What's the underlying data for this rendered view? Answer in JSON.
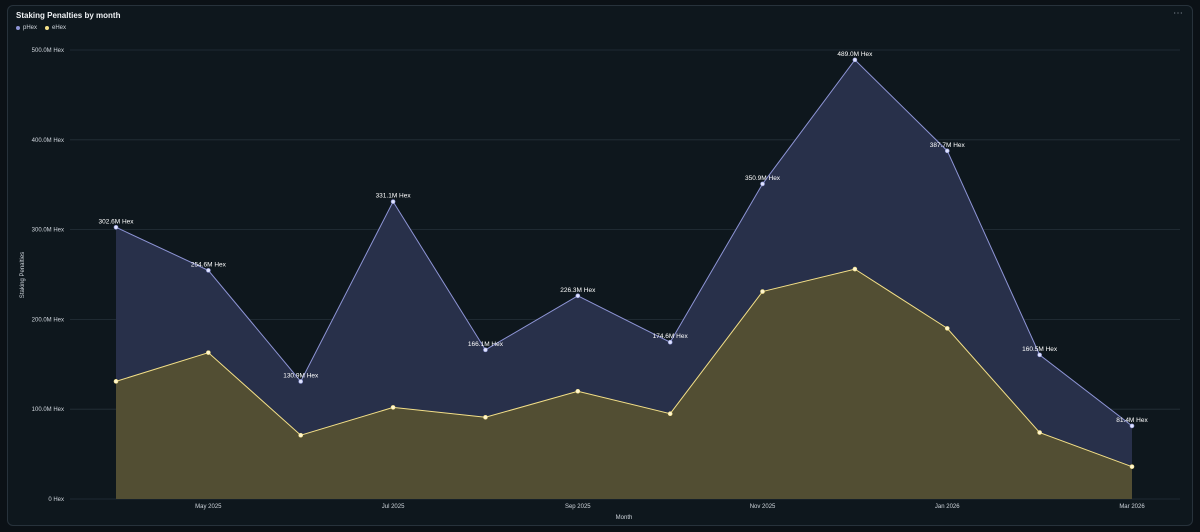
{
  "header": {
    "title": "Staking Penalties by month",
    "menu_icon": "more-icon"
  },
  "colors": {
    "pHex": "#8e95d6",
    "eHex": "#f4e088"
  },
  "chart_data": {
    "type": "area",
    "title": "Staking Penalties by month",
    "xlabel": "Month",
    "ylabel": "Staking Penalties",
    "ylim": [
      0,
      500
    ],
    "unit": "M Hex",
    "grid": true,
    "legend": "top-left",
    "x": [
      "Apr 2025",
      "May 2025",
      "Jun 2025",
      "Jul 2025",
      "Aug 2025",
      "Sep 2025",
      "Oct 2025",
      "Nov 2025",
      "Dec 2025",
      "Jan 2026",
      "Feb 2026",
      "Mar 2026"
    ],
    "x_tick_labels": [
      {
        "x": "May 2025",
        "label": "May 2025"
      },
      {
        "x": "Jul 2025",
        "label": "Jul 2025"
      },
      {
        "x": "Sep 2025",
        "label": "Sep 2025"
      },
      {
        "x": "Nov 2025",
        "label": "Nov 2025"
      },
      {
        "x": "Jan 2026",
        "label": "Jan 2026"
      },
      {
        "x": "Mar 2026",
        "label": "Mar 2026"
      }
    ],
    "y_tick_values": [
      0,
      100,
      200,
      300,
      400,
      500
    ],
    "y_tick_labels": [
      "0 Hex",
      "100.0M Hex",
      "200.0M Hex",
      "300.0M Hex",
      "400.0M Hex",
      "500.0M Hex"
    ],
    "series": [
      {
        "name": "pHex",
        "values": [
          302.6,
          254.6,
          130.9,
          331.1,
          166.1,
          226.3,
          174.6,
          350.9,
          489.0,
          387.7,
          160.5,
          81.4
        ],
        "labels": [
          "302.6M Hex",
          "254.6M Hex",
          "130.9M Hex",
          "331.1M Hex",
          "166.1M Hex",
          "226.3M Hex",
          "174.6M Hex",
          "350.9M Hex",
          "489.0M Hex",
          "387.7M Hex",
          "160.5M Hex",
          "81.4M Hex"
        ]
      },
      {
        "name": "eHex",
        "values": [
          131,
          163,
          71,
          102,
          91,
          120,
          95,
          231,
          256,
          190,
          74,
          36
        ]
      }
    ]
  }
}
